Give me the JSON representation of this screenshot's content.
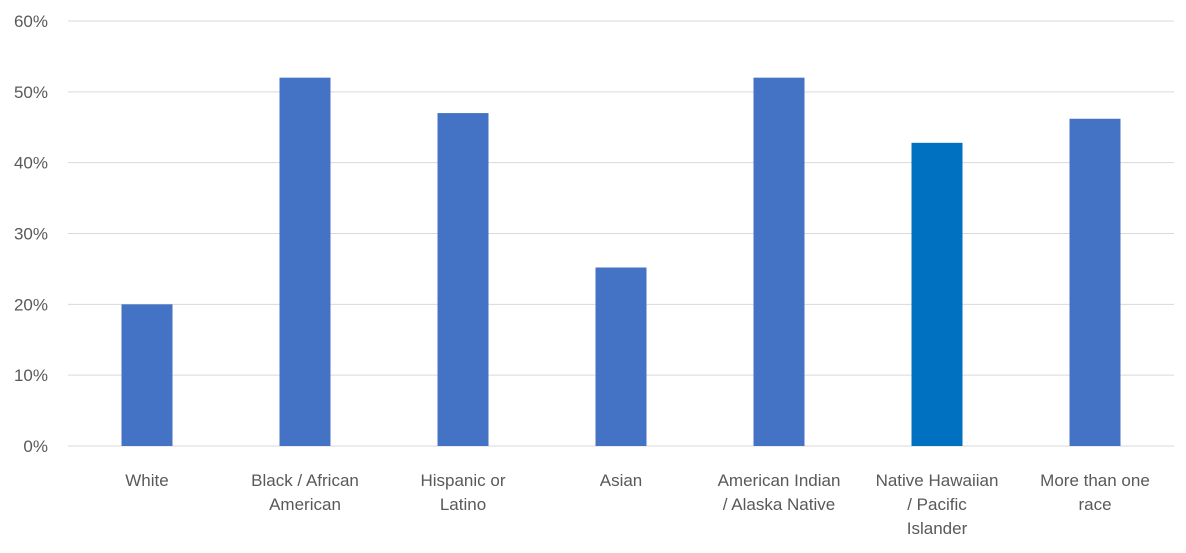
{
  "chart_data": {
    "type": "bar",
    "categories": [
      [
        "White"
      ],
      [
        "Black / African",
        "American"
      ],
      [
        "Hispanic or",
        "Latino"
      ],
      [
        "Asian"
      ],
      [
        "American Indian",
        "/ Alaska Native"
      ],
      [
        "Native Hawaiian",
        "/ Pacific",
        "Islander"
      ],
      [
        "More than one",
        "race"
      ]
    ],
    "series": [
      {
        "values": [
          20,
          52,
          47,
          25.2,
          52,
          42.8,
          46.2
        ]
      }
    ],
    "value_format": "percent",
    "ylim": [
      0,
      60
    ],
    "yticks": [
      0,
      10,
      20,
      30,
      40,
      50,
      60
    ],
    "ytick_labels": [
      "0%",
      "10%",
      "20%",
      "30%",
      "40%",
      "50%",
      "60%"
    ],
    "grid": true,
    "legend": "none",
    "colors": {
      "bar": "#4472C4",
      "highlight_bar": "#0070C0",
      "grid": "#D9D9D9",
      "text": "#595959"
    },
    "highlight_index": 5
  }
}
